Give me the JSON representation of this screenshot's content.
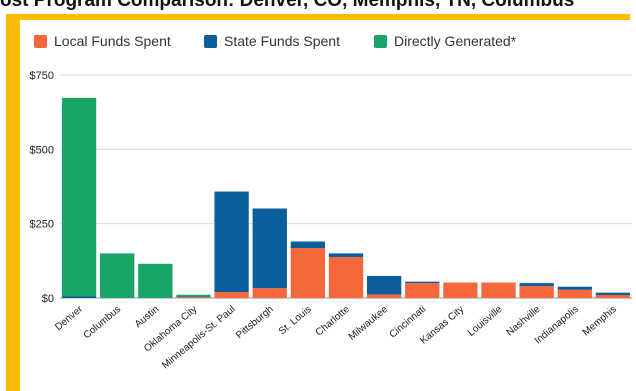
{
  "header_text": "ost Program Comparison: Denver, CO, Memphis, TN, Columbus",
  "chart_data": {
    "type": "bar",
    "stacked": true,
    "title": "",
    "xlabel": "",
    "ylabel": "",
    "ylim": [
      0,
      750
    ],
    "yticks": [
      "$0",
      "$250",
      "$500",
      "$750"
    ],
    "ytick_values": [
      0,
      250,
      500,
      750
    ],
    "grid": true,
    "legend_position": "top",
    "categories": [
      "Denver",
      "Columbus",
      "Austin",
      "Oklahoma City",
      "Minneapolis-St. Paul",
      "Pittsburgh",
      "St. Louis",
      "Charlotte",
      "Milwaukee",
      "Cincinnati",
      "Kansas City",
      "Louisville",
      "Nashville",
      "Indianapolis",
      "Memphis"
    ],
    "series": [
      {
        "name": "Local Funds Spent",
        "color": "#f4683c",
        "values": [
          0,
          0,
          0,
          3,
          20,
          33,
          168,
          138,
          12,
          50,
          52,
          52,
          40,
          28,
          10
        ]
      },
      {
        "name": "State Funds Spent",
        "color": "#0b5d9c",
        "values": [
          5,
          0,
          0,
          3,
          338,
          268,
          22,
          12,
          62,
          5,
          0,
          0,
          10,
          10,
          8
        ]
      },
      {
        "name": "Directly Generated*",
        "color": "#18a566",
        "values": [
          668,
          150,
          115,
          5,
          0,
          0,
          0,
          0,
          0,
          0,
          0,
          0,
          0,
          0,
          0
        ]
      }
    ]
  }
}
